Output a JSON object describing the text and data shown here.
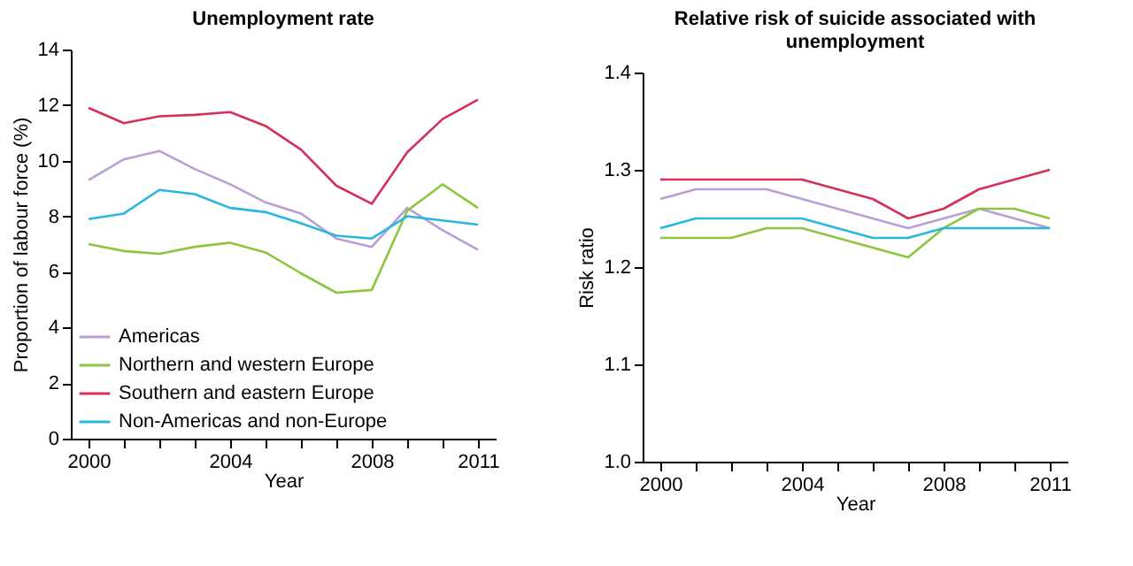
{
  "chart_data": [
    {
      "type": "line",
      "title": "Unemployment rate",
      "xlabel": "Year",
      "ylabel": "Proportion of labour force (%)",
      "x": [
        2000,
        2001,
        2002,
        2003,
        2004,
        2005,
        2006,
        2007,
        2008,
        2009,
        2010,
        2011
      ],
      "series": [
        {
          "name": "Americas",
          "color": "#b9a0d4",
          "values": [
            9.3,
            10.05,
            10.35,
            9.7,
            9.15,
            8.5,
            8.1,
            7.2,
            6.9,
            8.3,
            7.5,
            6.8
          ]
        },
        {
          "name": "Northern and western Europe",
          "color": "#8cc63f",
          "values": [
            7.0,
            6.75,
            6.65,
            6.9,
            7.05,
            6.7,
            5.95,
            5.25,
            5.35,
            8.2,
            9.15,
            8.3
          ]
        },
        {
          "name": "Southern and eastern Europe",
          "color": "#d6305a",
          "values": [
            11.9,
            11.35,
            11.6,
            11.65,
            11.75,
            11.25,
            10.4,
            9.1,
            8.45,
            10.3,
            11.5,
            12.2
          ]
        },
        {
          "name": "Non-Americas and non-Europe",
          "color": "#29b6e0",
          "values": [
            7.9,
            8.1,
            8.95,
            8.8,
            8.3,
            8.15,
            7.75,
            7.3,
            7.2,
            8.0,
            7.85,
            7.7
          ]
        }
      ],
      "xlim": [
        1999.5,
        2011.5
      ],
      "xticks": [
        2000,
        {
          "value": 2001,
          "label": null
        },
        {
          "value": 2002,
          "label": null
        },
        {
          "value": 2003,
          "label": null
        },
        2004,
        {
          "value": 2005,
          "label": null
        },
        {
          "value": 2006,
          "label": null
        },
        {
          "value": 2007,
          "label": null
        },
        2008,
        {
          "value": 2009,
          "label": null
        },
        {
          "value": 2010,
          "label": null
        },
        2011
      ],
      "ylim": [
        0,
        14
      ],
      "yticks": [
        0,
        2,
        4,
        6,
        8,
        10,
        12,
        14
      ],
      "grid": false,
      "legend": "bottom left",
      "marker": "none",
      "line_style": "solid"
    },
    {
      "type": "line",
      "title": "Relative risk of suicide associated with unemployment",
      "xlabel": "Year",
      "ylabel": "Risk ratio",
      "x": [
        2000,
        2001,
        2002,
        2003,
        2004,
        2005,
        2006,
        2007,
        2008,
        2009,
        2010,
        2011
      ],
      "series": [
        {
          "color": "#b9a0d4",
          "values": [
            1.27,
            1.28,
            1.28,
            1.28,
            1.27,
            1.26,
            1.25,
            1.24,
            1.25,
            1.26,
            1.25,
            1.24
          ]
        },
        {
          "color": "#8cc63f",
          "values": [
            1.23,
            1.23,
            1.23,
            1.24,
            1.24,
            1.23,
            1.22,
            1.21,
            1.24,
            1.26,
            1.26,
            1.25
          ]
        },
        {
          "color": "#d6305a",
          "values": [
            1.29,
            1.29,
            1.29,
            1.29,
            1.29,
            1.28,
            1.27,
            1.25,
            1.26,
            1.28,
            1.29,
            1.3
          ]
        },
        {
          "color": "#29b6e0",
          "values": [
            1.24,
            1.25,
            1.25,
            1.25,
            1.25,
            1.24,
            1.23,
            1.23,
            1.24,
            1.24,
            1.24,
            1.24
          ]
        }
      ],
      "xlim": [
        1999.5,
        2011.5
      ],
      "xticks": [
        2000,
        {
          "value": 2001,
          "label": null
        },
        {
          "value": 2002,
          "label": null
        },
        {
          "value": 2003,
          "label": null
        },
        2004,
        {
          "value": 2005,
          "label": null
        },
        {
          "value": 2006,
          "label": null
        },
        {
          "value": 2007,
          "label": null
        },
        2008,
        {
          "value": 2009,
          "label": null
        },
        {
          "value": 2010,
          "label": null
        },
        2011
      ],
      "ylim": [
        1.0,
        1.4
      ],
      "yticks": [
        {
          "value": 1.0,
          "label": "1.0"
        },
        {
          "value": 1.1,
          "label": "1.1"
        },
        {
          "value": 1.2,
          "label": "1.2"
        },
        {
          "value": 1.3,
          "label": "1.3"
        },
        {
          "value": 1.4,
          "label": "1.4"
        }
      ],
      "grid": false,
      "legend": false,
      "marker": "none",
      "line_style": "solid"
    }
  ]
}
